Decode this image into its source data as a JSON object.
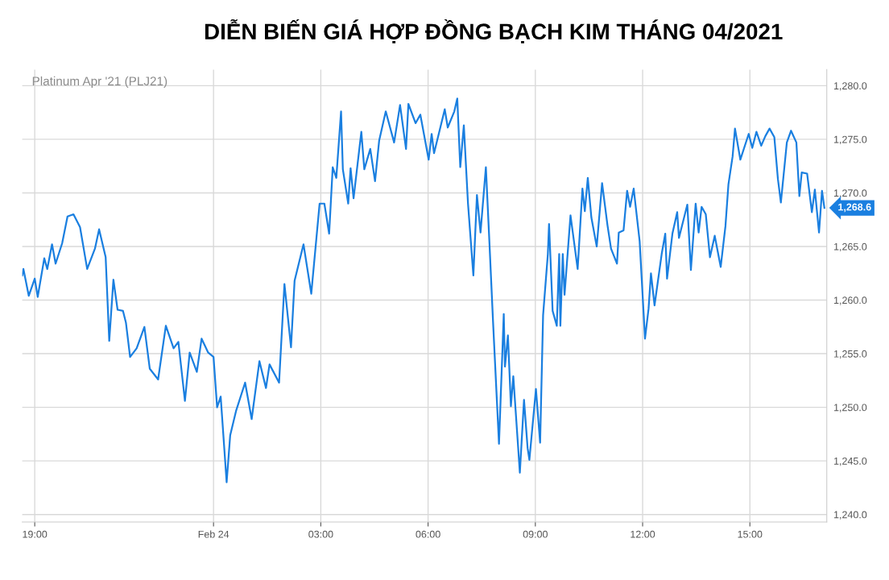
{
  "chart_data": {
    "type": "line",
    "title": "DIỄN BIẾN GIÁ HỢP ĐỒNG BẠCH KIM THÁNG 04/2021",
    "subtitle": "Platinum Apr '21 (PLJ21)",
    "x": [
      "2021-02-23T18:39",
      "2021-02-23T18:41",
      "2021-02-23T18:50",
      "2021-02-23T19:00",
      "2021-02-23T19:05",
      "2021-02-23T19:16",
      "2021-02-23T19:21",
      "2021-02-23T19:29",
      "2021-02-23T19:35",
      "2021-02-23T19:46",
      "2021-02-23T19:55",
      "2021-02-23T20:05",
      "2021-02-23T20:16",
      "2021-02-23T20:28",
      "2021-02-23T20:41",
      "2021-02-23T20:48",
      "2021-02-23T20:59",
      "2021-02-23T21:05",
      "2021-02-23T21:12",
      "2021-02-23T21:19",
      "2021-02-23T21:28",
      "2021-02-23T21:33",
      "2021-02-23T21:40",
      "2021-02-23T21:51",
      "2021-02-23T22:04",
      "2021-02-23T22:13",
      "2021-02-23T22:27",
      "2021-02-23T22:40",
      "2021-02-23T22:53",
      "2021-02-23T23:01",
      "2021-02-23T23:12",
      "2021-02-23T23:20",
      "2021-02-23T23:32",
      "2021-02-23T23:40",
      "2021-02-23T23:51",
      "2021-02-24T00:00",
      "2021-02-24T00:06",
      "2021-02-24T00:12",
      "2021-02-24T00:22",
      "2021-02-24T00:28",
      "2021-02-24T00:38",
      "2021-02-24T00:53",
      "2021-02-24T01:04",
      "2021-02-24T01:17",
      "2021-02-24T01:28",
      "2021-02-24T01:34",
      "2021-02-24T01:50",
      "2021-02-24T01:59",
      "2021-02-24T02:10",
      "2021-02-24T02:16",
      "2021-02-24T02:31",
      "2021-02-24T02:44",
      "2021-02-24T02:58",
      "2021-02-24T03:06",
      "2021-02-24T03:14",
      "2021-02-24T03:20",
      "2021-02-24T03:26",
      "2021-02-24T03:34",
      "2021-02-24T03:37",
      "2021-02-24T03:46",
      "2021-02-24T03:50",
      "2021-02-24T03:55",
      "2021-02-24T04:08",
      "2021-02-24T04:13",
      "2021-02-24T04:23",
      "2021-02-24T04:31",
      "2021-02-24T04:38",
      "2021-02-24T04:49",
      "2021-02-24T05:03",
      "2021-02-24T05:13",
      "2021-02-24T05:23",
      "2021-02-24T05:27",
      "2021-02-24T05:39",
      "2021-02-24T05:47",
      "2021-02-24T06:01",
      "2021-02-24T06:06",
      "2021-02-24T06:10",
      "2021-02-24T06:28",
      "2021-02-24T06:33",
      "2021-02-24T06:44",
      "2021-02-24T06:49",
      "2021-02-24T06:54",
      "2021-02-24T07:00",
      "2021-02-24T07:07",
      "2021-02-24T07:16",
      "2021-02-24T07:22",
      "2021-02-24T07:28",
      "2021-02-24T07:37",
      "2021-02-24T07:43",
      "2021-02-24T07:49",
      "2021-02-24T07:59",
      "2021-02-24T08:07",
      "2021-02-24T08:09",
      "2021-02-24T08:14",
      "2021-02-24T08:19",
      "2021-02-24T08:23",
      "2021-02-24T08:34",
      "2021-02-24T08:41",
      "2021-02-24T08:47",
      "2021-02-24T08:50",
      "2021-02-24T09:01",
      "2021-02-24T09:08",
      "2021-02-24T09:13",
      "2021-02-24T09:21",
      "2021-02-24T09:23",
      "2021-02-24T09:29",
      "2021-02-24T09:36",
      "2021-02-24T09:40",
      "2021-02-24T09:42",
      "2021-02-24T09:46",
      "2021-02-24T09:49",
      "2021-02-24T09:59",
      "2021-02-24T10:11",
      "2021-02-24T10:19",
      "2021-02-24T10:23",
      "2021-02-24T10:28",
      "2021-02-24T10:34",
      "2021-02-24T10:43",
      "2021-02-24T10:52",
      "2021-02-24T11:01",
      "2021-02-24T11:07",
      "2021-02-24T11:17",
      "2021-02-24T11:20",
      "2021-02-24T11:28",
      "2021-02-24T11:34",
      "2021-02-24T11:39",
      "2021-02-24T11:45",
      "2021-02-24T11:55",
      "2021-02-24T12:04",
      "2021-02-24T12:10",
      "2021-02-24T12:14",
      "2021-02-24T12:20",
      "2021-02-24T12:32",
      "2021-02-24T12:38",
      "2021-02-24T12:41",
      "2021-02-24T12:50",
      "2021-02-24T12:58",
      "2021-02-24T13:01",
      "2021-02-24T13:15",
      "2021-02-24T13:21",
      "2021-02-24T13:29",
      "2021-02-24T13:34",
      "2021-02-24T13:39",
      "2021-02-24T13:46",
      "2021-02-24T13:53",
      "2021-02-24T14:01",
      "2021-02-24T14:11",
      "2021-02-24T14:19",
      "2021-02-24T14:24",
      "2021-02-24T14:31",
      "2021-02-24T14:35",
      "2021-02-24T14:44",
      "2021-02-24T14:58",
      "2021-02-24T15:04",
      "2021-02-24T15:11",
      "2021-02-24T15:19",
      "2021-02-24T15:26",
      "2021-02-24T15:33",
      "2021-02-24T15:41",
      "2021-02-24T15:47",
      "2021-02-24T15:52",
      "2021-02-24T16:02",
      "2021-02-24T16:09",
      "2021-02-24T16:18",
      "2021-02-24T16:23",
      "2021-02-24T16:27",
      "2021-02-24T16:36",
      "2021-02-24T16:44",
      "2021-02-24T16:49",
      "2021-02-24T16:56",
      "2021-02-24T17:01",
      "2021-02-24T17:05"
    ],
    "series": [
      {
        "color": "#1a7fe0",
        "values": [
          1262.3,
          1262.9,
          1260.4,
          1262.0,
          1260.3,
          1263.9,
          1262.9,
          1265.2,
          1263.4,
          1265.3,
          1267.8,
          1268.0,
          1266.8,
          1262.9,
          1264.8,
          1266.6,
          1264.0,
          1256.2,
          1261.9,
          1259.1,
          1259.0,
          1257.9,
          1254.7,
          1255.5,
          1257.5,
          1253.6,
          1252.6,
          1257.6,
          1255.5,
          1256.1,
          1250.6,
          1255.1,
          1253.3,
          1256.4,
          1255.1,
          1254.7,
          1250.0,
          1251.0,
          1243.0,
          1247.4,
          1249.7,
          1252.3,
          1248.9,
          1254.3,
          1251.8,
          1254.0,
          1252.3,
          1261.5,
          1255.6,
          1261.8,
          1265.2,
          1260.6,
          1269.0,
          1269.0,
          1266.2,
          1272.4,
          1271.4,
          1277.6,
          1272.2,
          1269.0,
          1272.3,
          1269.5,
          1275.7,
          1272.2,
          1274.1,
          1271.1,
          1274.9,
          1277.6,
          1274.7,
          1278.2,
          1274.1,
          1278.3,
          1276.5,
          1277.3,
          1273.1,
          1275.5,
          1273.7,
          1277.8,
          1276.1,
          1277.6,
          1278.8,
          1272.4,
          1276.3,
          1269.0,
          1262.3,
          1269.8,
          1266.3,
          1272.4,
          1265.3,
          1258.0,
          1246.6,
          1258.7,
          1253.8,
          1256.7,
          1250.1,
          1252.9,
          1243.9,
          1250.7,
          1246.2,
          1245.1,
          1251.7,
          1246.7,
          1258.6,
          1264.3,
          1267.1,
          1259.0,
          1257.6,
          1264.3,
          1257.6,
          1264.3,
          1260.5,
          1267.9,
          1262.9,
          1270.4,
          1268.3,
          1271.4,
          1267.7,
          1265.0,
          1270.9,
          1267.0,
          1264.8,
          1263.4,
          1266.3,
          1266.5,
          1270.2,
          1268.7,
          1270.4,
          1265.5,
          1256.4,
          1259.2,
          1262.5,
          1259.5,
          1264.3,
          1266.2,
          1262.0,
          1266.2,
          1268.2,
          1265.8,
          1268.9,
          1262.8,
          1269.0,
          1266.3,
          1268.7,
          1268.0,
          1264.0,
          1266.0,
          1263.1,
          1266.9,
          1270.8,
          1273.4,
          1276.0,
          1273.1,
          1275.5,
          1274.2,
          1275.7,
          1274.4,
          1275.3,
          1276.0,
          1275.2,
          1271.3,
          1269.1,
          1274.7,
          1275.8,
          1274.7,
          1269.7,
          1271.9,
          1271.8,
          1268.2,
          1270.3,
          1266.3,
          1270.2,
          1268.6
        ]
      }
    ],
    "annotations": [
      {
        "text": "1,268.6",
        "x": "2021-02-24T17:05",
        "y": 1268.6
      }
    ],
    "xlim": [
      "2021-02-23T18:39",
      "2021-02-24T17:09"
    ],
    "xticks": [
      {
        "value": "2021-02-23T19:00",
        "label": "19:00"
      },
      {
        "value": "2021-02-24T00:00",
        "label": "Feb 24"
      },
      {
        "value": "2021-02-24T03:00",
        "label": "03:00"
      },
      {
        "value": "2021-02-24T06:00",
        "label": "06:00"
      },
      {
        "value": "2021-02-24T09:00",
        "label": "09:00"
      },
      {
        "value": "2021-02-24T12:00",
        "label": "12:00"
      },
      {
        "value": "2021-02-24T15:00",
        "label": "15:00"
      }
    ],
    "ylim": [
      1239.3,
      1281.5
    ],
    "yticks": [
      {
        "value": 1240,
        "label": "1,240.0"
      },
      {
        "value": 1245,
        "label": "1,245.0"
      },
      {
        "value": 1250,
        "label": "1,250.0"
      },
      {
        "value": 1255,
        "label": "1,255.0"
      },
      {
        "value": 1260,
        "label": "1,260.0"
      },
      {
        "value": 1265,
        "label": "1,265.0"
      },
      {
        "value": 1270,
        "label": "1,270.0"
      },
      {
        "value": 1275,
        "label": "1,275.0"
      },
      {
        "value": 1280,
        "label": "1,280.0"
      }
    ],
    "grid": true,
    "marker": "none",
    "line_style": "solid"
  }
}
